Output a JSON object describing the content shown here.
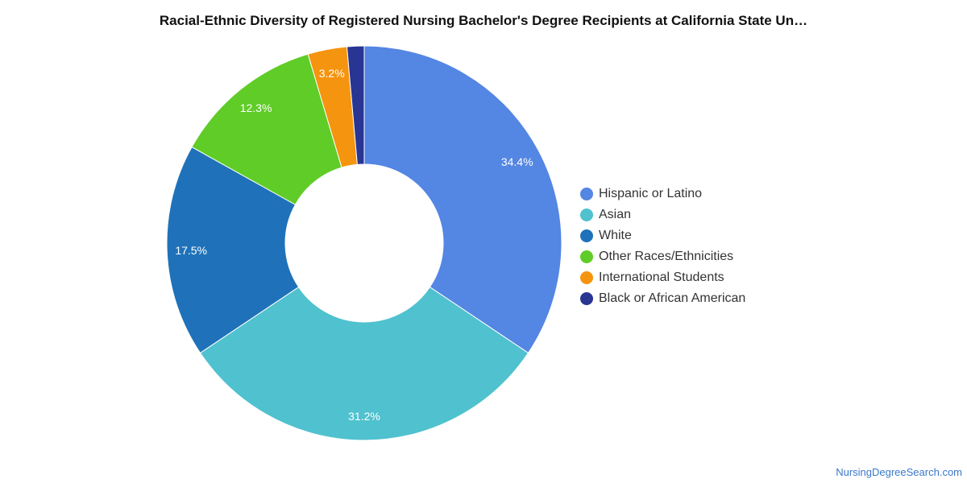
{
  "chart_data": {
    "type": "pie",
    "donut": true,
    "title": "Racial-Ethnic Diversity of Registered Nursing Bachelor's Degree Recipients at California State Un…",
    "categories": [
      "Hispanic or Latino",
      "Asian",
      "White",
      "Other Races/Ethnicities",
      "International Students",
      "Black or African American"
    ],
    "values": [
      34.4,
      31.2,
      17.5,
      12.3,
      3.2,
      1.4
    ],
    "labels": [
      "34.4%",
      "31.2%",
      "17.5%",
      "12.3%",
      "3.2%",
      ""
    ],
    "colors": [
      "#5486e3",
      "#50c1ce",
      "#1f72b9",
      "#60cc27",
      "#f5940f",
      "#283593"
    ],
    "legend_position": "right"
  },
  "source": "NursingDegreeSearch.com"
}
